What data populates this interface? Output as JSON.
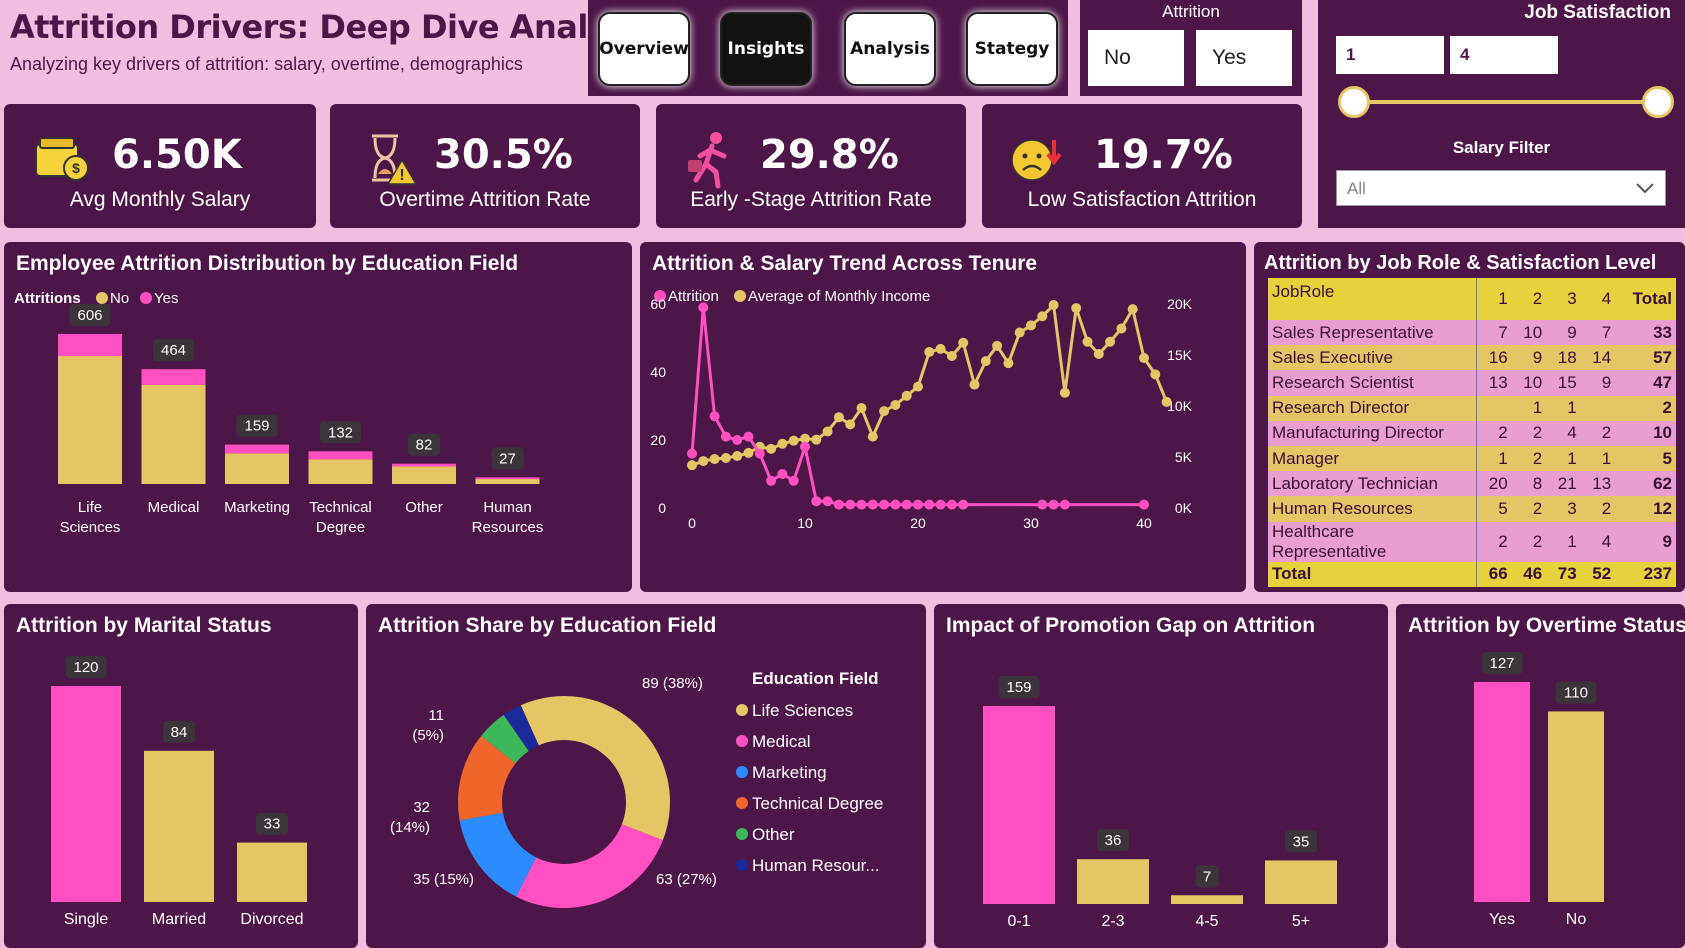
{
  "header": {
    "title": "Attrition Drivers: Deep Dive Analysis",
    "subtitle": "Analyzing key drivers of attrition: salary, overtime, demographics"
  },
  "nav": {
    "tabs": [
      {
        "label": "Overview",
        "active": false
      },
      {
        "label": "Insights",
        "active": true
      },
      {
        "label": "Analysis",
        "active": false
      },
      {
        "label": "Stategy",
        "active": false
      }
    ]
  },
  "attrition_slicer": {
    "label": "Attrition",
    "options": [
      "No",
      "Yes"
    ]
  },
  "job_satisfaction": {
    "label": "Job Satisfaction",
    "min": "1",
    "max": "4"
  },
  "salary_filter": {
    "label": "Salary Filter",
    "value": "All"
  },
  "kpis": [
    {
      "value": "6.50K",
      "label": "Avg Monthly Salary",
      "icon": "money-wallet-icon"
    },
    {
      "value": "30.5%",
      "label": "Overtime Attrition Rate",
      "icon": "hourglass-warning-icon"
    },
    {
      "value": "29.8%",
      "label": "Early -Stage Attrition Rate",
      "icon": "person-leaving-icon"
    },
    {
      "value": "19.7%",
      "label": "Low Satisfaction Attrition",
      "icon": "sad-face-icon"
    }
  ],
  "colors": {
    "yes": "#ff4fc0",
    "no": "#e6c565",
    "panel": "#4d1648",
    "bg": "#f2bde0"
  },
  "edu_chart": {
    "title": "Employee Attrition Distribution by Education Field",
    "legend_title": "Attritions",
    "legend": [
      "No",
      "Yes"
    ]
  },
  "trend_chart": {
    "title": "Attrition & Salary Trend Across Tenure",
    "legend": [
      "Attrition",
      "Average of Monthly Income"
    ]
  },
  "job_role": {
    "title": "Attrition by Job Role & Satisfaction Level",
    "headers": [
      "JobRole",
      "1",
      "2",
      "3",
      "4",
      "Total"
    ],
    "rows": [
      [
        "Sales Representative",
        "7",
        "10",
        "9",
        "7",
        "33"
      ],
      [
        "Sales Executive",
        "16",
        "9",
        "18",
        "14",
        "57"
      ],
      [
        "Research Scientist",
        "13",
        "10",
        "15",
        "9",
        "47"
      ],
      [
        "Research Director",
        "",
        "1",
        "1",
        "",
        "2"
      ],
      [
        "Manufacturing Director",
        "2",
        "2",
        "4",
        "2",
        "10"
      ],
      [
        "Manager",
        "1",
        "2",
        "1",
        "1",
        "5"
      ],
      [
        "Laboratory Technician",
        "20",
        "8",
        "21",
        "13",
        "62"
      ],
      [
        "Human Resources",
        "5",
        "2",
        "3",
        "2",
        "12"
      ],
      [
        "Healthcare Representative",
        "2",
        "2",
        "1",
        "4",
        "9"
      ]
    ],
    "total": [
      "Total",
      "66",
      "46",
      "73",
      "52",
      "237"
    ]
  },
  "marital_chart": {
    "title": "Attrition by Marital Status"
  },
  "donut_chart": {
    "title": "Attrition Share by Education Field",
    "legend_title": "Education Field",
    "legend": [
      "Life Sciences",
      "Medical",
      "Marketing",
      "Technical Degree",
      "Other",
      "Human Resour..."
    ]
  },
  "promo_chart": {
    "title": "Impact of Promotion Gap on Attrition"
  },
  "overtime_chart": {
    "title": "Attrition by Overtime Status"
  },
  "chart_data": [
    {
      "type": "bar",
      "id": "edu",
      "categories": [
        "Life Sciences",
        "Medical",
        "Marketing",
        "Technical Degree",
        "Other",
        "Human Resources"
      ],
      "series": [
        {
          "name": "No",
          "values": [
            517,
            401,
            124,
            100,
            71,
            20
          ]
        },
        {
          "name": "Yes",
          "values": [
            89,
            63,
            35,
            32,
            11,
            7
          ]
        }
      ],
      "totals": [
        606,
        464,
        159,
        132,
        82,
        27
      ]
    },
    {
      "type": "line",
      "id": "trend",
      "x_ticks": [
        0,
        10,
        20,
        30,
        40
      ],
      "y_left_ticks": [
        0,
        20,
        40,
        60
      ],
      "y_right_ticks": [
        "0K",
        "5K",
        "10K",
        "15K",
        "20K"
      ],
      "attrition": [
        [
          0,
          16
        ],
        [
          1,
          59
        ],
        [
          2,
          27
        ],
        [
          3,
          21
        ],
        [
          4,
          20
        ],
        [
          5,
          21
        ],
        [
          6,
          16
        ],
        [
          7,
          8
        ],
        [
          8,
          10
        ],
        [
          9,
          8
        ],
        [
          10,
          18
        ],
        [
          11,
          2
        ],
        [
          12,
          2
        ],
        [
          13,
          1
        ],
        [
          14,
          1
        ],
        [
          15,
          1
        ],
        [
          16,
          1
        ],
        [
          17,
          1
        ],
        [
          18,
          1
        ],
        [
          19,
          1
        ],
        [
          20,
          1
        ],
        [
          21,
          1
        ],
        [
          22,
          1
        ],
        [
          23,
          1
        ],
        [
          24,
          1
        ],
        [
          31,
          1
        ],
        [
          32,
          1
        ],
        [
          33,
          1
        ],
        [
          40,
          1
        ]
      ],
      "income": [
        [
          0,
          4.2
        ],
        [
          1,
          4.6
        ],
        [
          2,
          4.8
        ],
        [
          3,
          4.9
        ],
        [
          4,
          5.1
        ],
        [
          5,
          5.4
        ],
        [
          6,
          6.0
        ],
        [
          7,
          5.8
        ],
        [
          8,
          6.3
        ],
        [
          9,
          6.6
        ],
        [
          10,
          6.8
        ],
        [
          11,
          6.7
        ],
        [
          12,
          7.5
        ],
        [
          13,
          8.9
        ],
        [
          14,
          8.2
        ],
        [
          15,
          9.8
        ],
        [
          16,
          7.0
        ],
        [
          17,
          9.5
        ],
        [
          18,
          10.1
        ],
        [
          19,
          11.0
        ],
        [
          20,
          11.9
        ],
        [
          21,
          15.3
        ],
        [
          22,
          15.6
        ],
        [
          23,
          14.9
        ],
        [
          24,
          16.2
        ],
        [
          25,
          12.1
        ],
        [
          26,
          14.4
        ],
        [
          27,
          15.9
        ],
        [
          28,
          14.2
        ],
        [
          29,
          17.2
        ],
        [
          30,
          17.9
        ],
        [
          31,
          18.8
        ],
        [
          32,
          19.9
        ],
        [
          33,
          11.3
        ],
        [
          34,
          19.6
        ],
        [
          35,
          16.3
        ],
        [
          36,
          15.1
        ],
        [
          37,
          16.3
        ],
        [
          38,
          17.6
        ],
        [
          39,
          19.5
        ],
        [
          40,
          14.7
        ],
        [
          41,
          13.1
        ],
        [
          42,
          10.4
        ]
      ]
    },
    {
      "type": "bar",
      "id": "marital",
      "categories": [
        "Single",
        "Married",
        "Divorced"
      ],
      "values": [
        120,
        84,
        33
      ]
    },
    {
      "type": "pie",
      "id": "donut",
      "labels": [
        "Life Sciences",
        "Medical",
        "Marketing",
        "Technical Degree",
        "Other",
        "Human Resources"
      ],
      "values": [
        89,
        63,
        35,
        32,
        11,
        7
      ],
      "slice_labels": [
        "89 (38%)",
        "63 (27%)",
        "35 (15%)",
        "32\n(14%)",
        "11\n(5%)",
        ""
      ]
    },
    {
      "type": "bar",
      "id": "promo",
      "categories": [
        "0-1",
        "2-3",
        "4-5",
        "5+"
      ],
      "values": [
        159,
        36,
        7,
        35
      ]
    },
    {
      "type": "bar",
      "id": "overtime",
      "categories": [
        "Yes",
        "No"
      ],
      "values": [
        127,
        110
      ]
    }
  ]
}
